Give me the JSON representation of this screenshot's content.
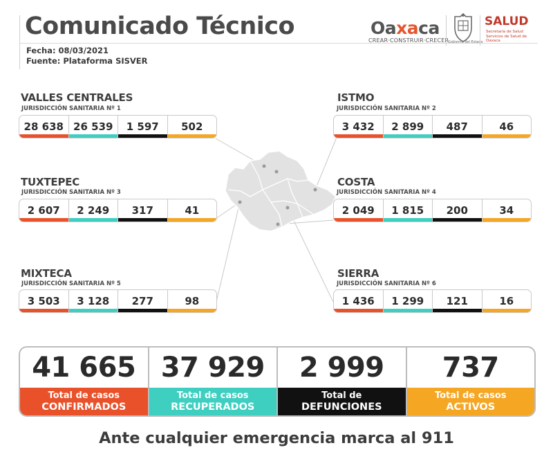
{
  "header": {
    "title": "Comunicado Técnico",
    "date": "Fecha: 08/03/2021",
    "source": "Fuente: Plataforma SISVER"
  },
  "logos": {
    "oaxaca_prefix": "Oa",
    "oaxaca_mid": "xa",
    "oaxaca_suffix": "ca",
    "oaxaca_tagline": "CREAR·CONSTRUIR·CRECER",
    "seal_caption": "Gobierno del Estado",
    "salud": "SALUD",
    "salud_sub": "Secretaría de Salud Servicios de Salud de Oaxaca"
  },
  "colors": {
    "confirmados": "#e8512a",
    "recuperados": "#3ecfc0",
    "defunciones": "#111111",
    "activos": "#f5a623"
  },
  "regions": [
    {
      "name": "VALLES CENTRALES",
      "jurisdiction": "JURISDICCIÓN SANITARIA Nº 1",
      "values": [
        "28 638",
        "26 539",
        "1 597",
        "502"
      ]
    },
    {
      "name": "ISTMO",
      "jurisdiction": "JURISDICCIÓN SANITARIA Nº 2",
      "values": [
        "3 432",
        "2 899",
        "487",
        "46"
      ]
    },
    {
      "name": "TUXTEPEC",
      "jurisdiction": "JURISDICCIÓN SANITARIA Nº 3",
      "values": [
        "2 607",
        "2 249",
        "317",
        "41"
      ]
    },
    {
      "name": "COSTA",
      "jurisdiction": "JURISDICCIÓN SANITARIA Nº 4",
      "values": [
        "2 049",
        "1 815",
        "200",
        "34"
      ]
    },
    {
      "name": "MIXTECA",
      "jurisdiction": "JURISDICCIÓN SANITARIA Nº 5",
      "values": [
        "3 503",
        "3 128",
        "277",
        "98"
      ]
    },
    {
      "name": "SIERRA",
      "jurisdiction": "JURISDICCIÓN SANITARIA Nº 6",
      "values": [
        "1 436",
        "1 299",
        "121",
        "16"
      ]
    }
  ],
  "totals": [
    {
      "value": "41 665",
      "line1": "Total de casos",
      "line2": "CONFIRMADOS"
    },
    {
      "value": "37 929",
      "line1": "Total de casos",
      "line2": "RECUPERADOS"
    },
    {
      "value": "2 999",
      "line1": "Total de",
      "line2": "DEFUNCIONES"
    },
    {
      "value": "737",
      "line1": "Total de casos",
      "line2": "ACTIVOS"
    }
  ],
  "footer": "Ante cualquier emergencia marca al 911"
}
